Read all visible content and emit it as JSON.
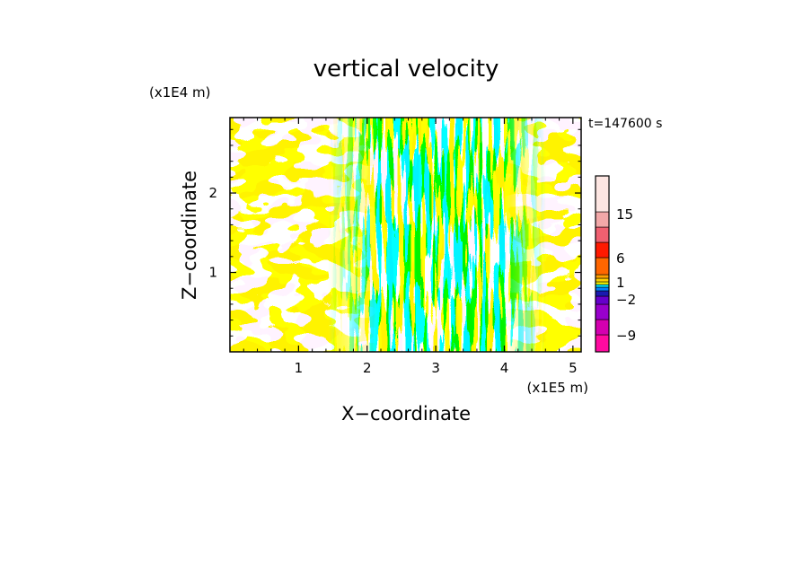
{
  "chart_data": {
    "type": "heatmap",
    "title": "vertical velocity",
    "time_label": "t=147600 s",
    "xlabel": "X−coordinate",
    "ylabel": "Z−coordinate",
    "x_unit_label": "(x1E5 m)",
    "y_unit_label": "(x1E4 m)",
    "xlim": [
      0,
      5.12
    ],
    "ylim": [
      0,
      2.95
    ],
    "x_ticks": [
      {
        "value": 1,
        "label": "1"
      },
      {
        "value": 2,
        "label": "2"
      },
      {
        "value": 3,
        "label": "3"
      },
      {
        "value": 4,
        "label": "4"
      },
      {
        "value": 5,
        "label": "5"
      }
    ],
    "y_ticks": [
      {
        "value": 1,
        "label": "1"
      },
      {
        "value": 2,
        "label": "2"
      }
    ],
    "field_colors": {
      "positive": "#ffff00",
      "negative": "#00e5ff"
    },
    "colorbar": {
      "levels": [
        {
          "color": "#ff0aa0"
        },
        {
          "color": "#d400b0"
        },
        {
          "color": "#9900cc"
        },
        {
          "color": "#6600cc"
        },
        {
          "color": "#1a1ab0"
        },
        {
          "color": "#0080ff"
        },
        {
          "color": "#00e5ff"
        },
        {
          "color": "#ffff00"
        },
        {
          "color": "#ffd000"
        },
        {
          "color": "#ffa000"
        },
        {
          "color": "#ff6600"
        },
        {
          "color": "#ff1a00"
        },
        {
          "color": "#f06070"
        },
        {
          "color": "#f2a8a8"
        },
        {
          "color": "#fde6e2"
        }
      ],
      "labels": [
        "15",
        "6",
        "1",
        "−2",
        "−9"
      ]
    }
  }
}
